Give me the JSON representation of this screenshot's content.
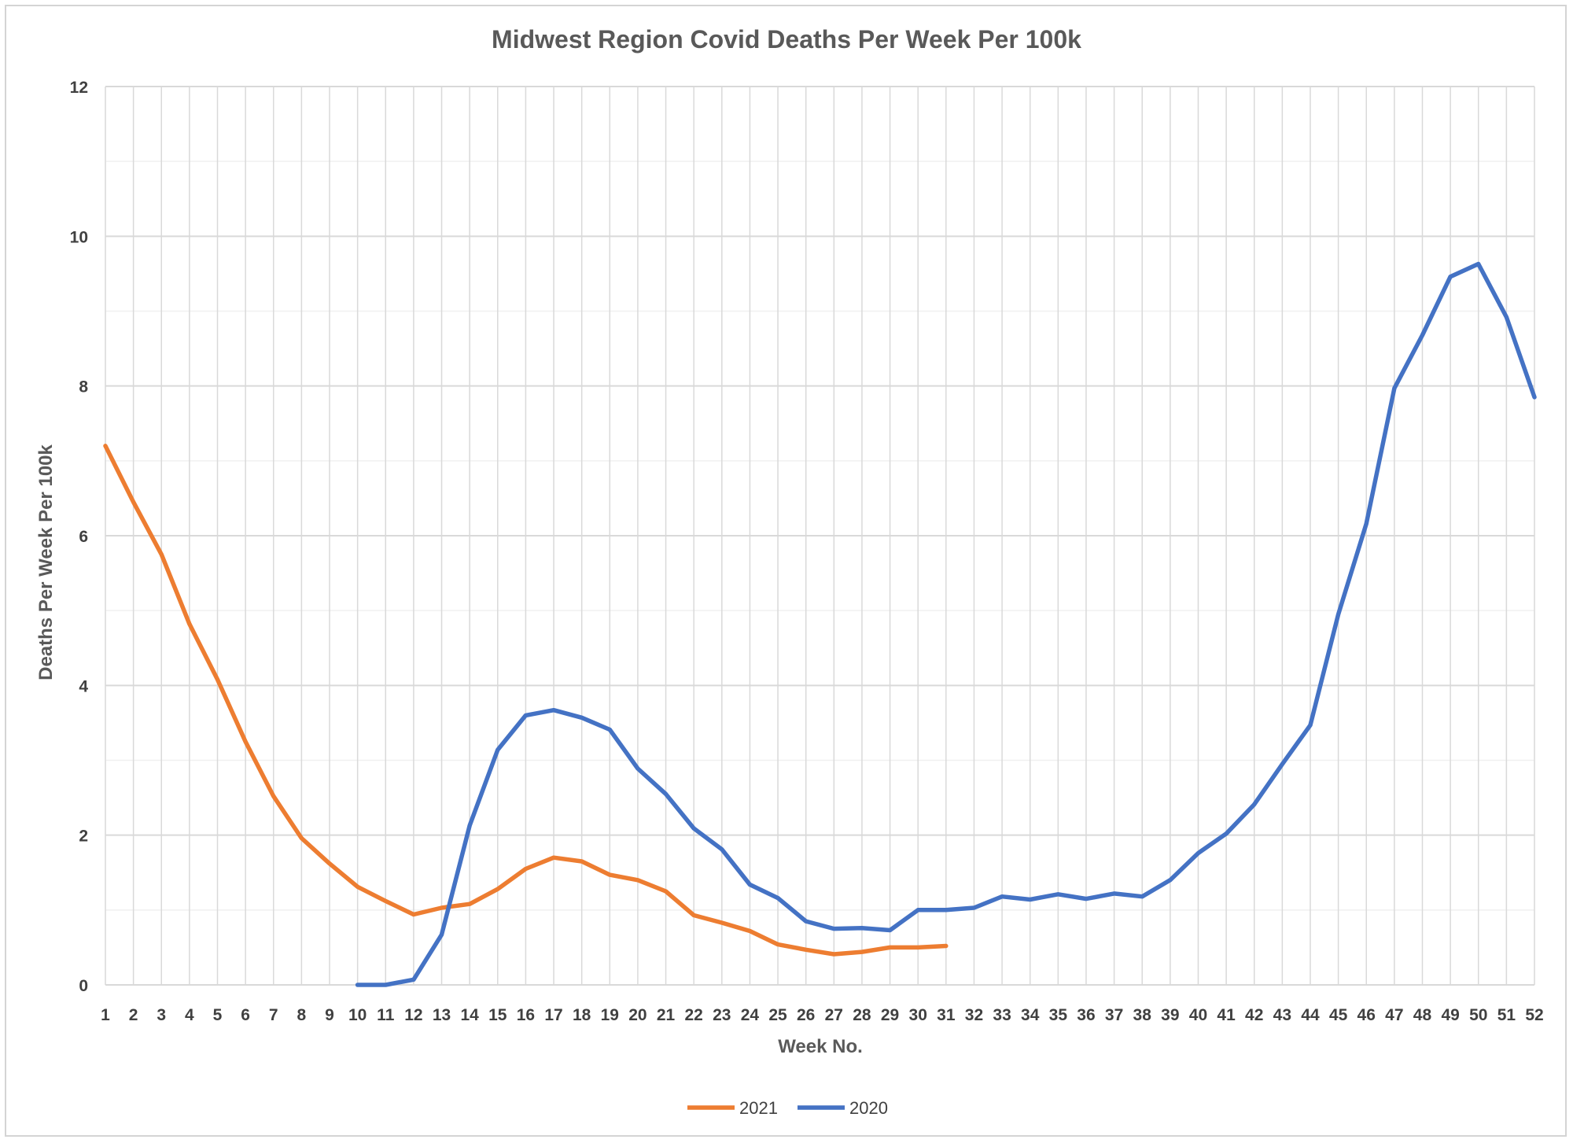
{
  "chart_data": {
    "type": "line",
    "title": "Midwest Region Covid Deaths Per Week Per 100k",
    "xlabel": "Week No.",
    "ylabel": "Deaths Per Week Per 100k",
    "x": [
      1,
      2,
      3,
      4,
      5,
      6,
      7,
      8,
      9,
      10,
      11,
      12,
      13,
      14,
      15,
      16,
      17,
      18,
      19,
      20,
      21,
      22,
      23,
      24,
      25,
      26,
      27,
      28,
      29,
      30,
      31,
      32,
      33,
      34,
      35,
      36,
      37,
      38,
      39,
      40,
      41,
      42,
      43,
      44,
      45,
      46,
      47,
      48,
      49,
      50,
      51,
      52
    ],
    "x_tick_labels": [
      "1",
      "2",
      "3",
      "4",
      "5",
      "6",
      "7",
      "8",
      "9",
      "10",
      "11",
      "12",
      "13",
      "14",
      "15",
      "16",
      "17",
      "18",
      "19",
      "20",
      "21",
      "22",
      "23",
      "24",
      "25",
      "26",
      "27",
      "28",
      "29",
      "30",
      "31",
      "32",
      "33",
      "34",
      "35",
      "36",
      "37",
      "38",
      "39",
      "40",
      "41",
      "42",
      "43",
      "44",
      "45",
      "46",
      "47",
      "48",
      "49",
      "50",
      "51",
      "52"
    ],
    "y_tick_labels": [
      "0",
      "2",
      "4",
      "6",
      "8",
      "10",
      "12"
    ],
    "ylim": [
      0,
      12
    ],
    "xlim": [
      1,
      52
    ],
    "grid": "major and minor horizontal, vertical at each week",
    "legend_position": "bottom",
    "series": [
      {
        "name": "2021",
        "color": "#ED7D31",
        "x": [
          1,
          2,
          3,
          4,
          5,
          6,
          7,
          8,
          9,
          10,
          11,
          12,
          13,
          14,
          15,
          16,
          17,
          18,
          19,
          20,
          21,
          22,
          23,
          24,
          25,
          26,
          27,
          28,
          29,
          30,
          31
        ],
        "values": [
          7.2,
          6.45,
          5.75,
          4.82,
          4.08,
          3.25,
          2.52,
          1.96,
          1.62,
          1.31,
          1.12,
          0.94,
          1.03,
          1.08,
          1.28,
          1.55,
          1.7,
          1.65,
          1.47,
          1.4,
          1.25,
          0.93,
          0.83,
          0.72,
          0.54,
          0.47,
          0.41,
          0.44,
          0.5,
          0.5,
          0.52
        ]
      },
      {
        "name": "2020",
        "color": "#4472C4",
        "x": [
          10,
          11,
          12,
          13,
          14,
          15,
          16,
          17,
          18,
          19,
          20,
          21,
          22,
          23,
          24,
          25,
          26,
          27,
          28,
          29,
          30,
          31,
          32,
          33,
          34,
          35,
          36,
          37,
          38,
          39,
          40,
          41,
          42,
          43,
          44,
          45,
          46,
          47,
          48,
          49,
          50,
          51,
          52
        ],
        "values": [
          0.0,
          0.0,
          0.07,
          0.67,
          2.13,
          3.14,
          3.6,
          3.67,
          3.57,
          3.41,
          2.89,
          2.55,
          2.09,
          1.81,
          1.34,
          1.16,
          0.85,
          0.75,
          0.76,
          0.73,
          1.0,
          1.0,
          1.03,
          1.18,
          1.14,
          1.21,
          1.15,
          1.22,
          1.18,
          1.4,
          1.76,
          2.02,
          2.41,
          2.95,
          3.47,
          4.95,
          6.16,
          7.97,
          8.68,
          9.46,
          9.63,
          8.92,
          7.85
        ]
      }
    ]
  }
}
